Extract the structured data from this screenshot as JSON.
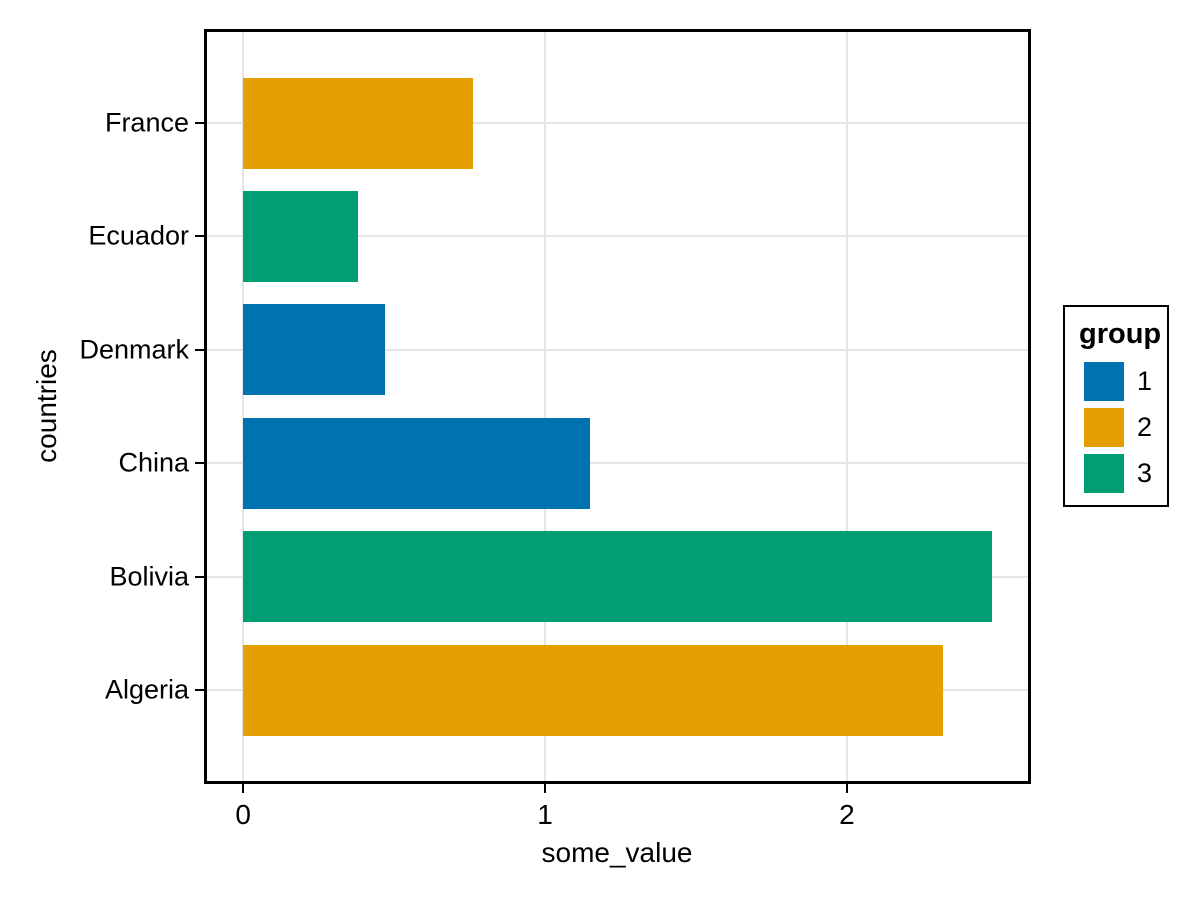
{
  "chart_data": {
    "type": "bar",
    "orientation": "horizontal",
    "title": "",
    "xlabel": "some_value",
    "ylabel": "countries",
    "categories": [
      "France",
      "Ecuador",
      "Denmark",
      "China",
      "Bolivia",
      "Algeria"
    ],
    "values": [
      0.76,
      0.38,
      0.47,
      1.15,
      2.48,
      2.32
    ],
    "groups": [
      "2",
      "3",
      "1",
      "1",
      "3",
      "2"
    ],
    "group_colors": {
      "1": "#0072B2",
      "2": "#E69F00",
      "3": "#009E73"
    },
    "x_ticks": [
      {
        "label": "0",
        "value": 0
      },
      {
        "label": "1",
        "value": 1
      },
      {
        "label": "2",
        "value": 2
      }
    ],
    "xlim": [
      -0.12,
      2.6
    ],
    "grid": true,
    "legend": {
      "title": "group",
      "position": "right",
      "entries": [
        {
          "label": "1",
          "color": "#0072B2"
        },
        {
          "label": "2",
          "color": "#E69F00"
        },
        {
          "label": "3",
          "color": "#009E73"
        }
      ]
    },
    "colors": {
      "panel_border": "#000000",
      "gridline": "#E5E5E5",
      "tick": "#000000",
      "text": "#000000",
      "background": "#FFFFFF"
    }
  }
}
